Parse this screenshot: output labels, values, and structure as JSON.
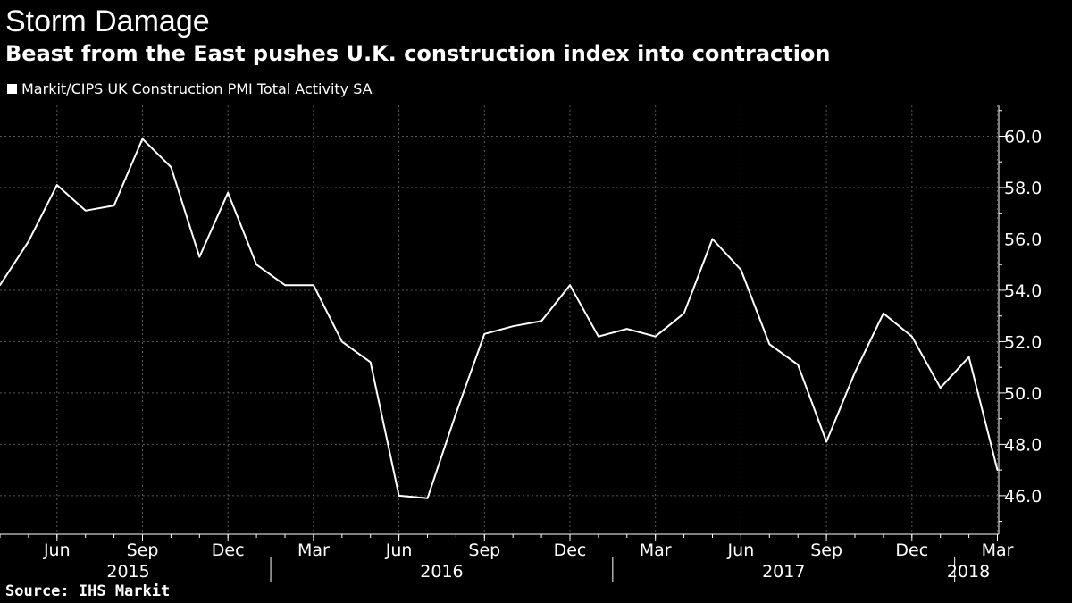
{
  "chart_data": {
    "type": "line",
    "title": "Storm Damage",
    "subtitle": "Beast from the East pushes U.K. construction index into contraction",
    "legend": [
      "Markit/CIPS UK Construction PMI Total Activity SA"
    ],
    "source": "Source: IHS Markit",
    "ylim": [
      44.5,
      61.2
    ],
    "yticks": [
      "46.0",
      "48.0",
      "50.0",
      "52.0",
      "54.0",
      "56.0",
      "58.0",
      "60.0"
    ],
    "series": [
      {
        "name": "Markit/CIPS UK Construction PMI Total Activity SA",
        "x": [
          "2015-04",
          "2015-05",
          "2015-06",
          "2015-07",
          "2015-08",
          "2015-09",
          "2015-10",
          "2015-11",
          "2015-12",
          "2016-01",
          "2016-02",
          "2016-03",
          "2016-04",
          "2016-05",
          "2016-06",
          "2016-07",
          "2016-08",
          "2016-09",
          "2016-10",
          "2016-11",
          "2016-12",
          "2017-01",
          "2017-02",
          "2017-03",
          "2017-04",
          "2017-05",
          "2017-06",
          "2017-07",
          "2017-08",
          "2017-09",
          "2017-10",
          "2017-11",
          "2017-12",
          "2018-01",
          "2018-02",
          "2018-03"
        ],
        "values": [
          54.2,
          55.9,
          58.1,
          57.1,
          57.3,
          59.9,
          58.8,
          55.3,
          57.8,
          55.0,
          54.2,
          54.2,
          52.0,
          51.2,
          46.0,
          45.9,
          49.2,
          52.3,
          52.6,
          52.8,
          54.2,
          52.2,
          52.5,
          52.2,
          53.1,
          56.0,
          54.8,
          51.9,
          51.1,
          48.1,
          50.8,
          53.1,
          52.2,
          50.2,
          51.4,
          47.0
        ]
      }
    ],
    "xticks": [
      {
        "label": "Jun",
        "month_index": 2
      },
      {
        "label": "Sep",
        "month_index": 5
      },
      {
        "label": "Dec",
        "month_index": 8
      },
      {
        "label": "Mar",
        "month_index": 11
      },
      {
        "label": "Jun",
        "month_index": 14
      },
      {
        "label": "Sep",
        "month_index": 17
      },
      {
        "label": "Dec",
        "month_index": 20
      },
      {
        "label": "Mar",
        "month_index": 23
      },
      {
        "label": "Jun",
        "month_index": 26
      },
      {
        "label": "Sep",
        "month_index": 29
      },
      {
        "label": "Dec",
        "month_index": 32
      },
      {
        "label": "Mar",
        "month_index": 35
      }
    ],
    "years": [
      {
        "label": "2015",
        "center_index": 4.5
      },
      {
        "label": "2016",
        "center_index": 15.5
      },
      {
        "label": "2017",
        "center_index": 27.5
      },
      {
        "label": "2018",
        "center_index": 37.5
      }
    ],
    "year_boundaries": [
      9.5,
      21.5,
      33.5
    ]
  }
}
